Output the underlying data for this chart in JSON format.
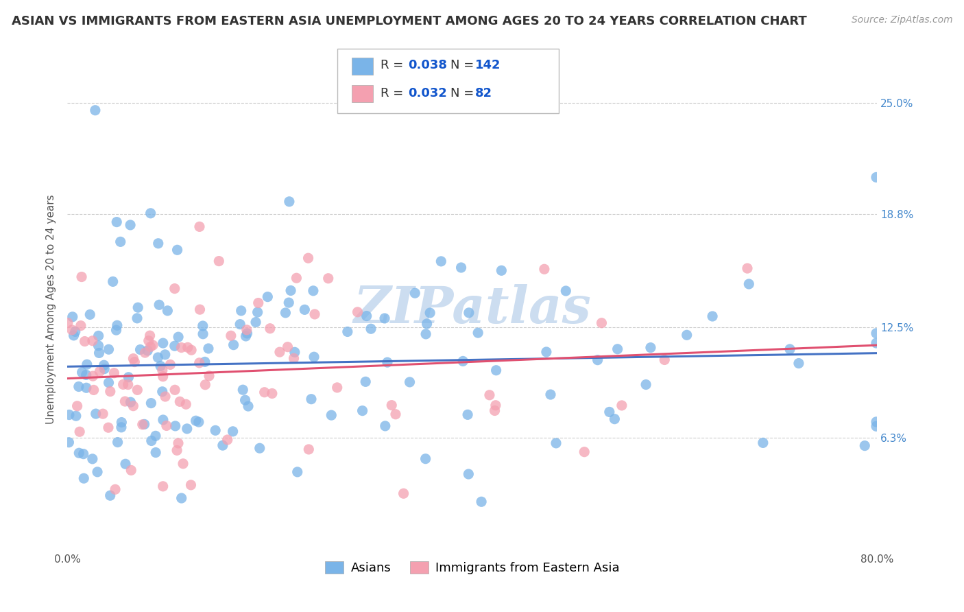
{
  "title": "ASIAN VS IMMIGRANTS FROM EASTERN ASIA UNEMPLOYMENT AMONG AGES 20 TO 24 YEARS CORRELATION CHART",
  "source_text": "Source: ZipAtlas.com",
  "ylabel": "Unemployment Among Ages 20 to 24 years",
  "xlim": [
    0.0,
    80.0
  ],
  "ylim": [
    0.0,
    27.0
  ],
  "yticks": [
    6.3,
    12.5,
    18.8,
    25.0
  ],
  "xticks": [
    0.0,
    80.0
  ],
  "grid_color": "#cccccc",
  "background_color": "#ffffff",
  "series": [
    {
      "label": "Asians",
      "R": 0.038,
      "N": 142,
      "color": "#7ab4e8",
      "trend_color": "#4472c4",
      "seed": 42,
      "x_concentration": 0.3,
      "y_mean": 10.5,
      "y_std": 3.8
    },
    {
      "label": "Immigrants from Eastern Asia",
      "R": 0.032,
      "N": 82,
      "color": "#f4a0b0",
      "trend_color": "#e05070",
      "seed": 7,
      "x_concentration": 0.22,
      "y_mean": 10.0,
      "y_std": 3.2
    }
  ],
  "legend_R_color": "#1155cc",
  "legend_N_color": "#1155cc",
  "watermark": "ZIPatlas",
  "watermark_color": "#ccddf0",
  "title_fontsize": 13,
  "axis_label_fontsize": 11,
  "tick_fontsize": 11,
  "legend_fontsize": 13,
  "source_fontsize": 10,
  "dot_size": 120,
  "dot_alpha": 0.75
}
